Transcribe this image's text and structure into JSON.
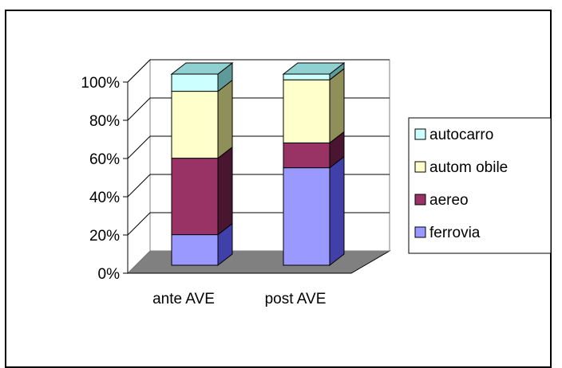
{
  "chart_data": {
    "type": "bar",
    "stacked": true,
    "percent_stacked": true,
    "three_d": true,
    "title": "",
    "xlabel": "",
    "ylabel": "",
    "categories": [
      "ante AVE",
      "post AVE"
    ],
    "ylim": [
      0,
      100
    ],
    "y_ticks": [
      "0%",
      "20%",
      "40%",
      "60%",
      "80%",
      "100%"
    ],
    "grid": true,
    "legend_position": "right",
    "series": [
      {
        "name": "ferrovia",
        "values": [
          16,
          51
        ],
        "color": "#9999ff",
        "side": "#4040a8",
        "top": "#b8b8ff"
      },
      {
        "name": "aereo",
        "values": [
          40,
          13
        ],
        "color": "#993366",
        "side": "#4a1530",
        "top": "#b55a85"
      },
      {
        "name": "autom obile",
        "values": [
          35,
          33
        ],
        "color": "#ffffcc",
        "side": "#8f8f5a",
        "top": "#ffffe6"
      },
      {
        "name": "autocarro",
        "values": [
          9,
          3
        ],
        "color": "#ccffff",
        "side": "#5f9a9a",
        "top": "#8fd0d0"
      }
    ]
  }
}
